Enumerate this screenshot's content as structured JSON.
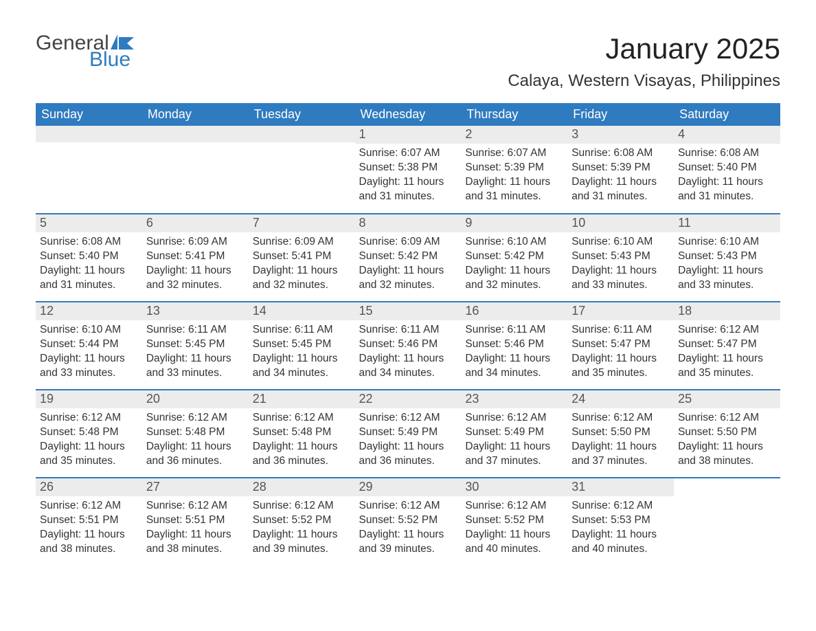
{
  "logo": {
    "text_general": "General",
    "text_blue": "Blue",
    "flag_color": "#2f7bbf"
  },
  "title": "January 2025",
  "location": "Calaya, Western Visayas, Philippines",
  "colors": {
    "header_bg": "#2f7bbf",
    "header_text": "#ffffff",
    "daynum_bg": "#ececec",
    "row_divider": "#2f7bbf",
    "body_text": "#333333",
    "page_bg": "#ffffff"
  },
  "typography": {
    "title_fontsize": 42,
    "location_fontsize": 24,
    "header_fontsize": 18,
    "daynum_fontsize": 18,
    "body_fontsize": 15.5
  },
  "weekdays": [
    "Sunday",
    "Monday",
    "Tuesday",
    "Wednesday",
    "Thursday",
    "Friday",
    "Saturday"
  ],
  "weeks": [
    [
      null,
      null,
      null,
      {
        "num": "1",
        "sunrise": "Sunrise: 6:07 AM",
        "sunset": "Sunset: 5:38 PM",
        "daylight": "Daylight: 11 hours and 31 minutes."
      },
      {
        "num": "2",
        "sunrise": "Sunrise: 6:07 AM",
        "sunset": "Sunset: 5:39 PM",
        "daylight": "Daylight: 11 hours and 31 minutes."
      },
      {
        "num": "3",
        "sunrise": "Sunrise: 6:08 AM",
        "sunset": "Sunset: 5:39 PM",
        "daylight": "Daylight: 11 hours and 31 minutes."
      },
      {
        "num": "4",
        "sunrise": "Sunrise: 6:08 AM",
        "sunset": "Sunset: 5:40 PM",
        "daylight": "Daylight: 11 hours and 31 minutes."
      }
    ],
    [
      {
        "num": "5",
        "sunrise": "Sunrise: 6:08 AM",
        "sunset": "Sunset: 5:40 PM",
        "daylight": "Daylight: 11 hours and 31 minutes."
      },
      {
        "num": "6",
        "sunrise": "Sunrise: 6:09 AM",
        "sunset": "Sunset: 5:41 PM",
        "daylight": "Daylight: 11 hours and 32 minutes."
      },
      {
        "num": "7",
        "sunrise": "Sunrise: 6:09 AM",
        "sunset": "Sunset: 5:41 PM",
        "daylight": "Daylight: 11 hours and 32 minutes."
      },
      {
        "num": "8",
        "sunrise": "Sunrise: 6:09 AM",
        "sunset": "Sunset: 5:42 PM",
        "daylight": "Daylight: 11 hours and 32 minutes."
      },
      {
        "num": "9",
        "sunrise": "Sunrise: 6:10 AM",
        "sunset": "Sunset: 5:42 PM",
        "daylight": "Daylight: 11 hours and 32 minutes."
      },
      {
        "num": "10",
        "sunrise": "Sunrise: 6:10 AM",
        "sunset": "Sunset: 5:43 PM",
        "daylight": "Daylight: 11 hours and 33 minutes."
      },
      {
        "num": "11",
        "sunrise": "Sunrise: 6:10 AM",
        "sunset": "Sunset: 5:43 PM",
        "daylight": "Daylight: 11 hours and 33 minutes."
      }
    ],
    [
      {
        "num": "12",
        "sunrise": "Sunrise: 6:10 AM",
        "sunset": "Sunset: 5:44 PM",
        "daylight": "Daylight: 11 hours and 33 minutes."
      },
      {
        "num": "13",
        "sunrise": "Sunrise: 6:11 AM",
        "sunset": "Sunset: 5:45 PM",
        "daylight": "Daylight: 11 hours and 33 minutes."
      },
      {
        "num": "14",
        "sunrise": "Sunrise: 6:11 AM",
        "sunset": "Sunset: 5:45 PM",
        "daylight": "Daylight: 11 hours and 34 minutes."
      },
      {
        "num": "15",
        "sunrise": "Sunrise: 6:11 AM",
        "sunset": "Sunset: 5:46 PM",
        "daylight": "Daylight: 11 hours and 34 minutes."
      },
      {
        "num": "16",
        "sunrise": "Sunrise: 6:11 AM",
        "sunset": "Sunset: 5:46 PM",
        "daylight": "Daylight: 11 hours and 34 minutes."
      },
      {
        "num": "17",
        "sunrise": "Sunrise: 6:11 AM",
        "sunset": "Sunset: 5:47 PM",
        "daylight": "Daylight: 11 hours and 35 minutes."
      },
      {
        "num": "18",
        "sunrise": "Sunrise: 6:12 AM",
        "sunset": "Sunset: 5:47 PM",
        "daylight": "Daylight: 11 hours and 35 minutes."
      }
    ],
    [
      {
        "num": "19",
        "sunrise": "Sunrise: 6:12 AM",
        "sunset": "Sunset: 5:48 PM",
        "daylight": "Daylight: 11 hours and 35 minutes."
      },
      {
        "num": "20",
        "sunrise": "Sunrise: 6:12 AM",
        "sunset": "Sunset: 5:48 PM",
        "daylight": "Daylight: 11 hours and 36 minutes."
      },
      {
        "num": "21",
        "sunrise": "Sunrise: 6:12 AM",
        "sunset": "Sunset: 5:48 PM",
        "daylight": "Daylight: 11 hours and 36 minutes."
      },
      {
        "num": "22",
        "sunrise": "Sunrise: 6:12 AM",
        "sunset": "Sunset: 5:49 PM",
        "daylight": "Daylight: 11 hours and 36 minutes."
      },
      {
        "num": "23",
        "sunrise": "Sunrise: 6:12 AM",
        "sunset": "Sunset: 5:49 PM",
        "daylight": "Daylight: 11 hours and 37 minutes."
      },
      {
        "num": "24",
        "sunrise": "Sunrise: 6:12 AM",
        "sunset": "Sunset: 5:50 PM",
        "daylight": "Daylight: 11 hours and 37 minutes."
      },
      {
        "num": "25",
        "sunrise": "Sunrise: 6:12 AM",
        "sunset": "Sunset: 5:50 PM",
        "daylight": "Daylight: 11 hours and 38 minutes."
      }
    ],
    [
      {
        "num": "26",
        "sunrise": "Sunrise: 6:12 AM",
        "sunset": "Sunset: 5:51 PM",
        "daylight": "Daylight: 11 hours and 38 minutes."
      },
      {
        "num": "27",
        "sunrise": "Sunrise: 6:12 AM",
        "sunset": "Sunset: 5:51 PM",
        "daylight": "Daylight: 11 hours and 38 minutes."
      },
      {
        "num": "28",
        "sunrise": "Sunrise: 6:12 AM",
        "sunset": "Sunset: 5:52 PM",
        "daylight": "Daylight: 11 hours and 39 minutes."
      },
      {
        "num": "29",
        "sunrise": "Sunrise: 6:12 AM",
        "sunset": "Sunset: 5:52 PM",
        "daylight": "Daylight: 11 hours and 39 minutes."
      },
      {
        "num": "30",
        "sunrise": "Sunrise: 6:12 AM",
        "sunset": "Sunset: 5:52 PM",
        "daylight": "Daylight: 11 hours and 40 minutes."
      },
      {
        "num": "31",
        "sunrise": "Sunrise: 6:12 AM",
        "sunset": "Sunset: 5:53 PM",
        "daylight": "Daylight: 11 hours and 40 minutes."
      },
      null
    ]
  ]
}
